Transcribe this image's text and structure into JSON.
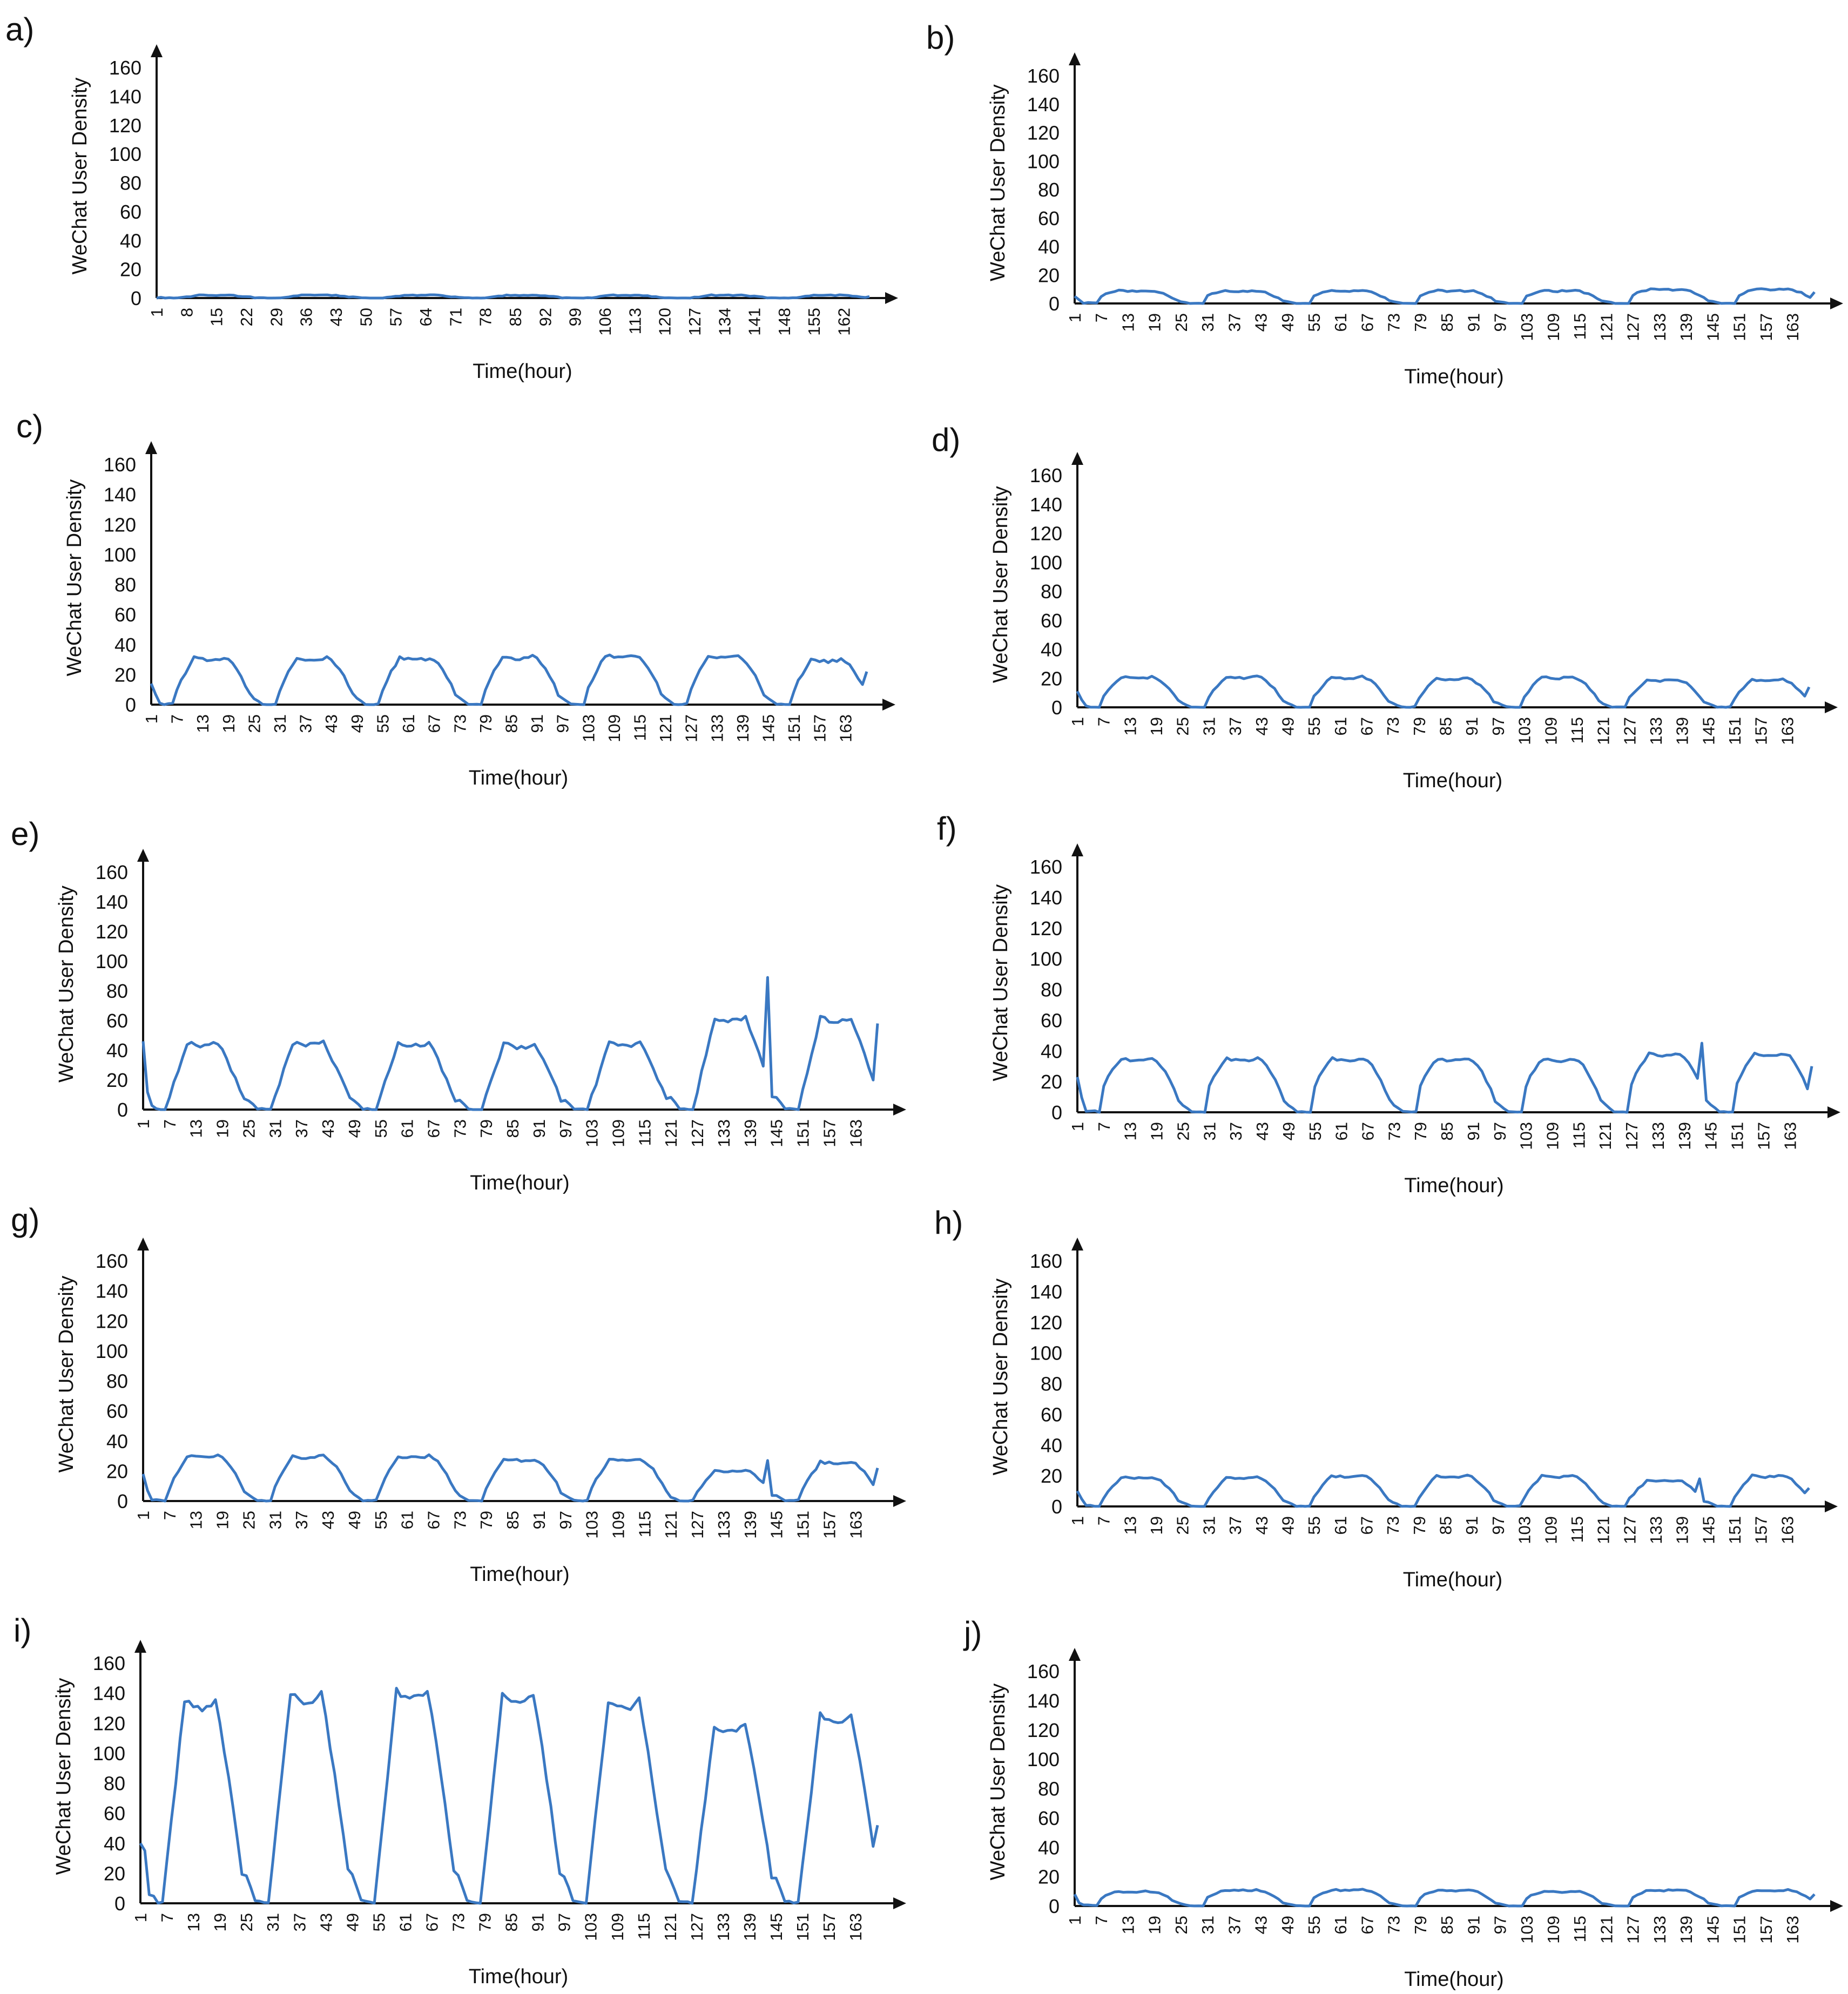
{
  "style": {
    "line_color": "#3a78c2",
    "axis_color": "#111111"
  },
  "shared": {
    "ylabel": "WeChat User Density",
    "xlabel": "Time(hour)",
    "yticks": [
      "0",
      "20",
      "40",
      "60",
      "80",
      "100",
      "120",
      "140",
      "160"
    ],
    "ylim": [
      0,
      160
    ],
    "xlim": [
      1,
      168
    ],
    "xticks_a": [
      "1",
      "8",
      "15",
      "22",
      "29",
      "36",
      "43",
      "50",
      "57",
      "64",
      "71",
      "78",
      "85",
      "92",
      "99",
      "106",
      "113",
      "120",
      "127",
      "134",
      "141",
      "148",
      "155",
      "162"
    ],
    "xticks": [
      "1",
      "7",
      "13",
      "19",
      "25",
      "31",
      "37",
      "43",
      "49",
      "55",
      "61",
      "67",
      "73",
      "79",
      "85",
      "91",
      "97",
      "103",
      "109",
      "115",
      "121",
      "127",
      "133",
      "139",
      "145",
      "151",
      "157",
      "163"
    ]
  },
  "chart_data": [
    {
      "type": "line",
      "panel": "a)",
      "xticks_key": "xticks_a",
      "series": [
        {
          "name": "a",
          "day_levels": [
            2,
            2,
            2,
            2,
            2,
            2,
            2
          ],
          "start": 0,
          "end": 1,
          "sharpness": 1,
          "noise": 0.6,
          "spikes": []
        }
      ]
    },
    {
      "type": "line",
      "panel": "b)",
      "xticks_key": "xticks",
      "series": [
        {
          "name": "b",
          "day_levels": [
            9,
            9,
            9,
            9,
            9,
            10,
            10
          ],
          "start": 5,
          "end": 8,
          "sharpness": 3,
          "noise": 1,
          "spikes": []
        }
      ]
    },
    {
      "type": "line",
      "panel": "c)",
      "xticks_key": "xticks",
      "series": [
        {
          "name": "c",
          "day_levels": [
            31,
            31,
            31,
            32,
            33,
            32,
            30
          ],
          "start": 14,
          "end": 22,
          "sharpness": 1.4,
          "noise": 2,
          "spikes": []
        }
      ]
    },
    {
      "type": "line",
      "panel": "d)",
      "xticks_key": "xticks",
      "series": [
        {
          "name": "d",
          "day_levels": [
            21,
            21,
            21,
            20,
            21,
            19,
            19
          ],
          "start": 11,
          "end": 14,
          "sharpness": 1.5,
          "noise": 1.4,
          "spikes": []
        }
      ]
    },
    {
      "type": "line",
      "panel": "e)",
      "xticks_key": "xticks",
      "series": [
        {
          "name": "e",
          "day_levels": [
            45,
            45,
            45,
            44,
            45,
            62,
            62
          ],
          "start": 46,
          "end": 58,
          "sharpness": 1,
          "noise": 3,
          "spikes": [
            [
              143,
              89
            ]
          ]
        }
      ]
    },
    {
      "type": "line",
      "panel": "f)",
      "xticks_key": "xticks",
      "series": [
        {
          "name": "f",
          "day_levels": [
            35,
            35,
            35,
            35,
            35,
            38,
            38
          ],
          "start": 23,
          "end": 30,
          "sharpness": 2.2,
          "noise": 1.6,
          "spikes": [
            [
              143,
              45
            ]
          ]
        }
      ]
    },
    {
      "type": "line",
      "panel": "g)",
      "xticks_key": "xticks",
      "series": [
        {
          "name": "g",
          "day_levels": [
            30,
            30,
            30,
            28,
            28,
            20,
            26
          ],
          "start": 18,
          "end": 22,
          "sharpness": 1.3,
          "noise": 1.8,
          "spikes": [
            [
              143,
              27
            ]
          ]
        }
      ]
    },
    {
      "type": "line",
      "panel": "h)",
      "xticks_key": "xticks",
      "series": [
        {
          "name": "h",
          "day_levels": [
            19,
            19,
            20,
            20,
            20,
            17,
            20
          ],
          "start": 10,
          "end": 12,
          "sharpness": 1.3,
          "noise": 1.2,
          "spikes": [
            [
              143,
              18
            ]
          ]
        }
      ]
    },
    {
      "type": "line",
      "panel": "i)",
      "xticks_key": "xticks",
      "series": [
        {
          "name": "i",
          "day_levels": [
            135,
            140,
            142,
            138,
            135,
            118,
            125
          ],
          "start": 40,
          "end": 52,
          "sharpness": 1,
          "noise": 4,
          "spikes": []
        }
      ]
    },
    {
      "type": "line",
      "panel": "j)",
      "xticks_key": "xticks",
      "series": [
        {
          "name": "j",
          "day_levels": [
            10,
            11,
            11,
            11,
            10,
            11,
            11
          ],
          "start": 8,
          "end": 8,
          "sharpness": 2.5,
          "noise": 1,
          "spikes": []
        }
      ]
    }
  ]
}
